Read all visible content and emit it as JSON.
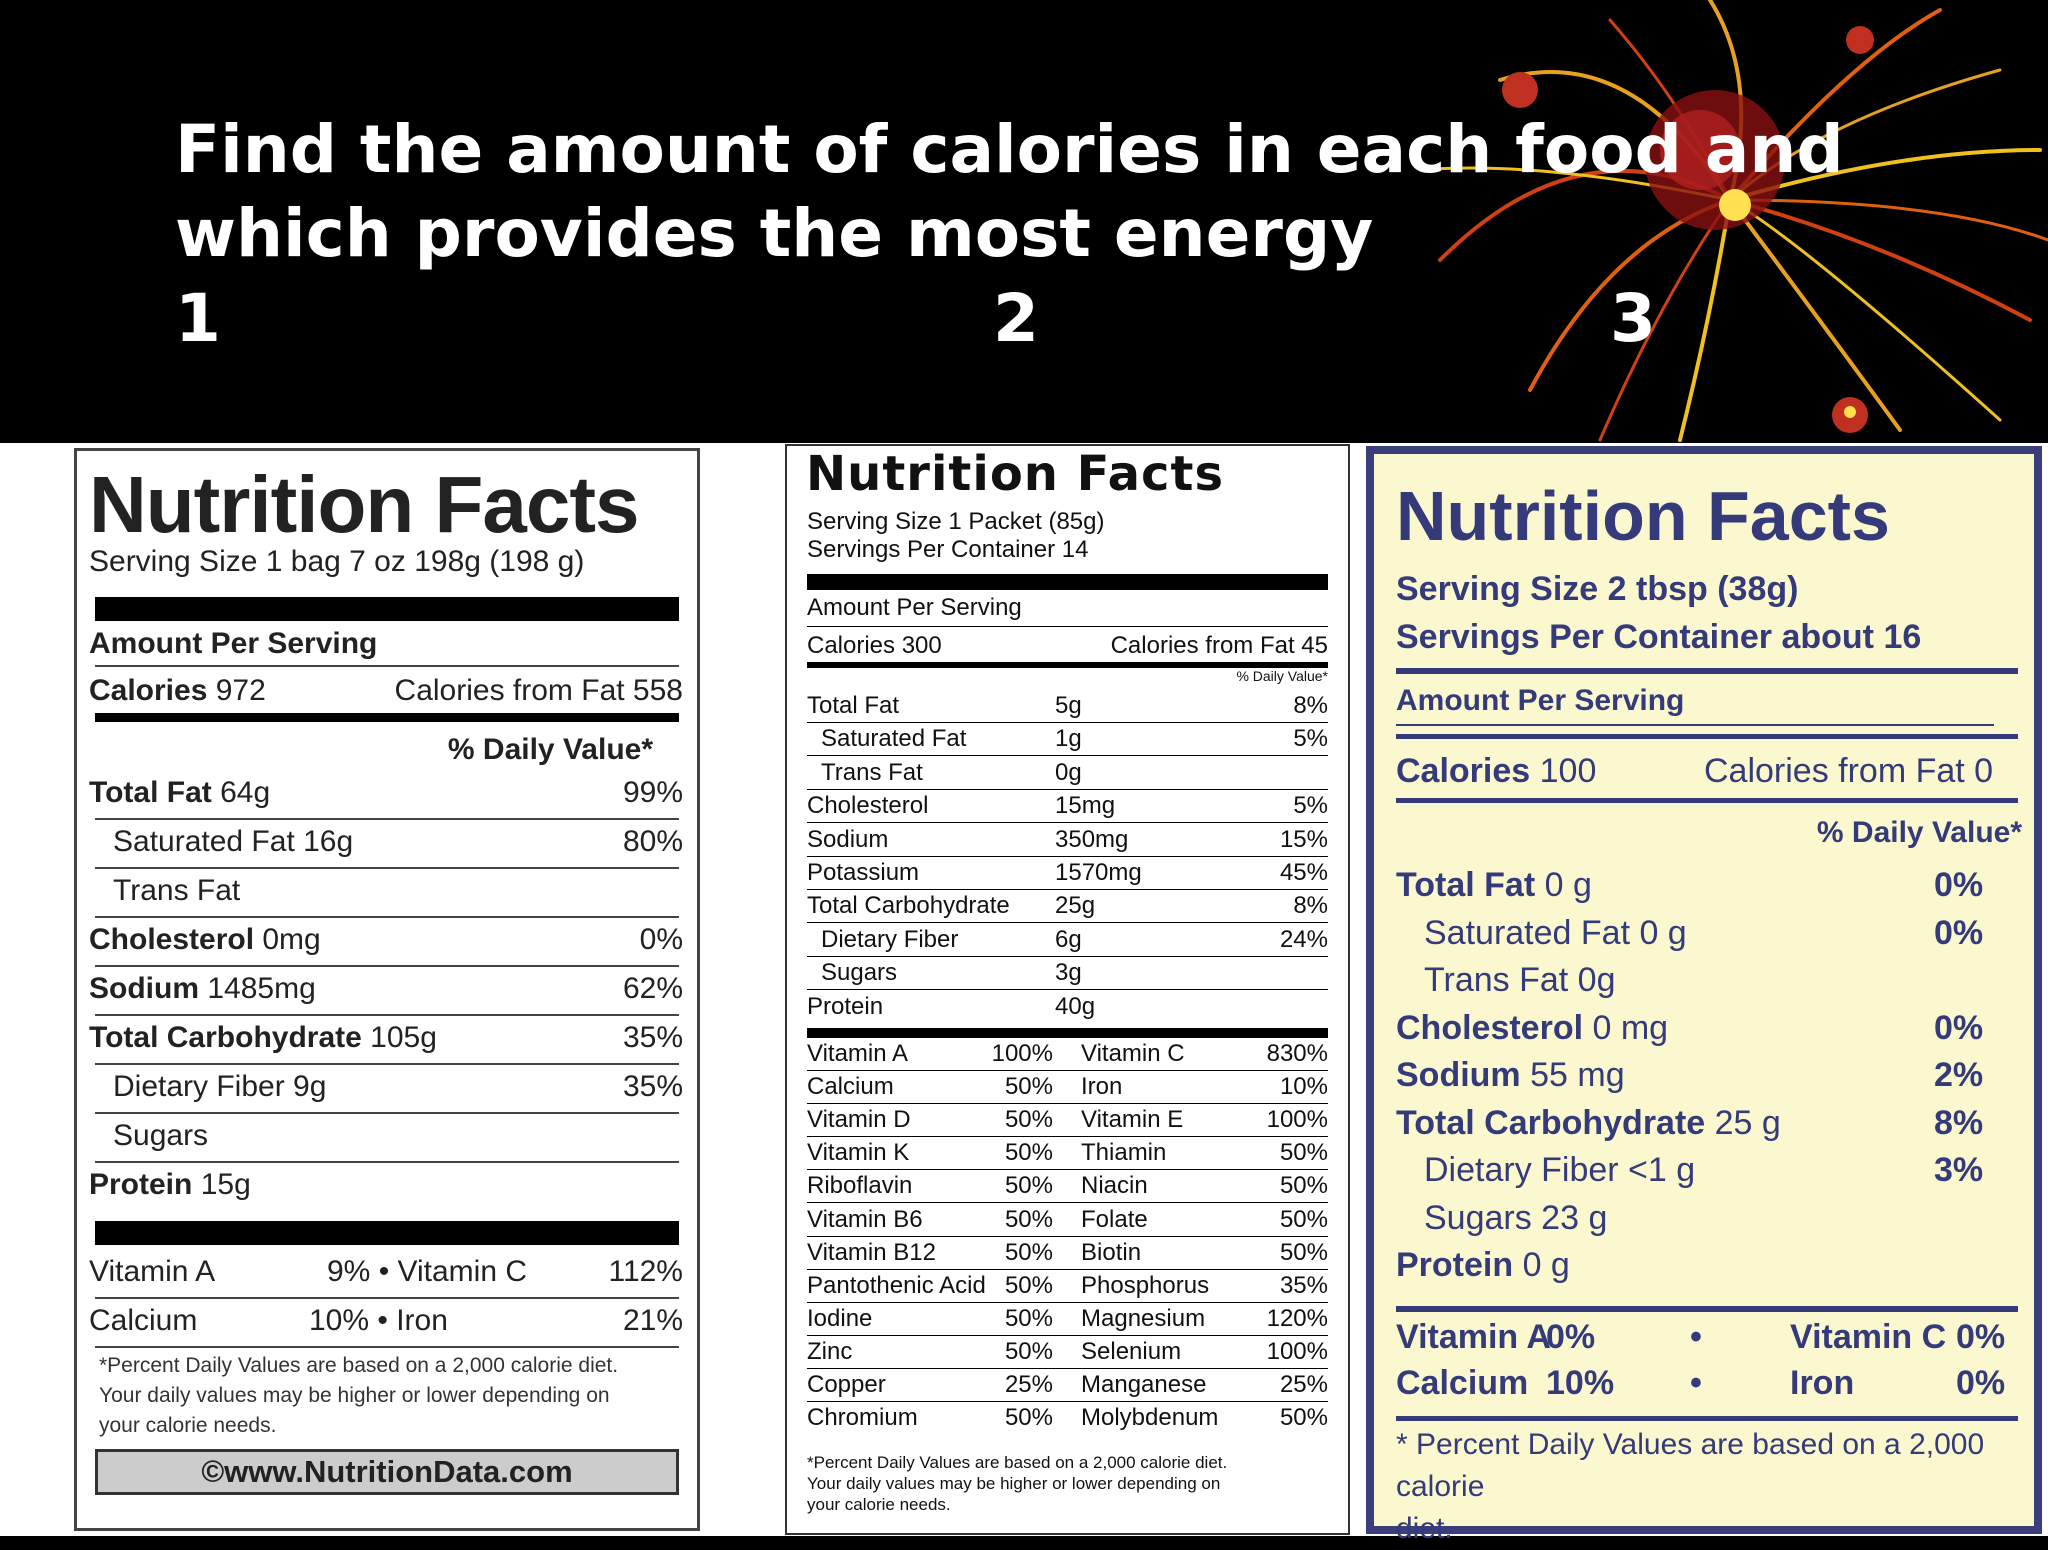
{
  "slide": {
    "title_line1": "Find the amount of calories in each food and",
    "title_line2": "which provides the most energy",
    "numbers": [
      "1",
      "2",
      "3"
    ]
  },
  "label1": {
    "heading": "Nutrition Facts",
    "serving": "Serving Size 1 bag 7 oz 198g (198 g)",
    "amount_per_serving": "Amount Per Serving",
    "calories_label": "Calories",
    "calories_value": "972",
    "calories_from_fat": "Calories from Fat 558",
    "dv_header": "% Daily Value*",
    "nutrients": [
      {
        "name": "Total Fat",
        "amount": "64g",
        "dv": "99%",
        "bold": true
      },
      {
        "name": "Saturated Fat 16g",
        "amount": "",
        "dv": "80%",
        "bold": false
      },
      {
        "name": "Trans Fat",
        "amount": "",
        "dv": "",
        "bold": false
      },
      {
        "name": "Cholesterol",
        "amount": "0mg",
        "dv": "0%",
        "bold": true
      },
      {
        "name": "Sodium",
        "amount": "1485mg",
        "dv": "62%",
        "bold": true
      },
      {
        "name": "Total Carbohydrate",
        "amount": "105g",
        "dv": "35%",
        "bold": true
      },
      {
        "name": "Dietary Fiber 9g",
        "amount": "",
        "dv": "35%",
        "bold": false
      },
      {
        "name": "Sugars",
        "amount": "",
        "dv": "",
        "bold": false
      },
      {
        "name": "Protein",
        "amount": "15g",
        "dv": "",
        "bold": true
      }
    ],
    "vitamins": [
      {
        "left": "Vitamin A",
        "mid": "9% • Vitamin C",
        "right": "112%"
      },
      {
        "left": "Calcium",
        "mid": "10% • Iron",
        "right": "21%"
      }
    ],
    "footnote": [
      "*Percent Daily Values are based on a 2,000 calorie diet.",
      "Your daily values may be higher or lower depending on",
      "your calorie needs."
    ],
    "copyright": "©www.NutritionData.com"
  },
  "label2": {
    "heading": "Nutrition Facts",
    "serving_size": "Serving Size 1 Packet (85g)",
    "servings_per": "Servings Per Container 14",
    "amount_per_serving": "Amount Per Serving",
    "calories": "Calories 300",
    "calories_from_fat": "Calories from Fat 45",
    "dv_header": "% Daily Value*",
    "nutrients": [
      {
        "name": "Total Fat",
        "amount": "5g",
        "dv": "8%"
      },
      {
        "name": "Saturated Fat",
        "amount": "1g",
        "dv": "5%"
      },
      {
        "name": "Trans Fat",
        "amount": "0g",
        "dv": ""
      },
      {
        "name": "Cholesterol",
        "amount": "15mg",
        "dv": "5%"
      },
      {
        "name": "Sodium",
        "amount": "350mg",
        "dv": "15%"
      },
      {
        "name": "Potassium",
        "amount": "1570mg",
        "dv": "45%"
      },
      {
        "name": "Total Carbohydrate",
        "amount": "25g",
        "dv": "8%"
      },
      {
        "name": "Dietary Fiber",
        "amount": "6g",
        "dv": "24%"
      },
      {
        "name": "Sugars",
        "amount": "3g",
        "dv": ""
      },
      {
        "name": "Protein",
        "amount": "40g",
        "dv": ""
      }
    ],
    "vitamins": [
      [
        "Vitamin A",
        "100%",
        "Vitamin C",
        "830%"
      ],
      [
        "Calcium",
        "50%",
        "Iron",
        "10%"
      ],
      [
        "Vitamin D",
        "50%",
        "Vitamin E",
        "100%"
      ],
      [
        "Vitamin K",
        "50%",
        "Thiamin",
        "50%"
      ],
      [
        "Riboflavin",
        "50%",
        "Niacin",
        "50%"
      ],
      [
        "Vitamin B6",
        "50%",
        "Folate",
        "50%"
      ],
      [
        "Vitamin B12",
        "50%",
        "Biotin",
        "50%"
      ],
      [
        "Pantothenic Acid",
        "50%",
        "Phosphorus",
        "35%"
      ],
      [
        "Iodine",
        "50%",
        "Magnesium",
        "120%"
      ],
      [
        "Zinc",
        "50%",
        "Selenium",
        "100%"
      ],
      [
        "Copper",
        "25%",
        "Manganese",
        "25%"
      ],
      [
        "Chromium",
        "50%",
        "Molybdenum",
        "50%"
      ]
    ],
    "footnote": [
      "*Percent Daily Values are based on a 2,000 calorie diet.",
      "Your daily values may be higher or lower depending on",
      "your calorie needs."
    ]
  },
  "label3": {
    "heading": "Nutrition Facts",
    "serving_size": "Serving Size 2 tbsp (38g)",
    "servings_per": "Servings Per Container about 16",
    "amount_per_serving": "Amount Per Serving",
    "calories_label": "Calories",
    "calories_value": "100",
    "calories_from_fat": "Calories from Fat 0",
    "dv_header": "% Daily Value*",
    "nutrients": [
      {
        "name": "Total Fat",
        "amount": "0 g",
        "dv": "0%",
        "bold": true
      },
      {
        "name": "Saturated Fat 0 g",
        "amount": "",
        "dv": "0%",
        "bold": false
      },
      {
        "name": "Trans Fat 0g",
        "amount": "",
        "dv": "",
        "bold": false
      },
      {
        "name": "Cholesterol",
        "amount": "0 mg",
        "dv": "0%",
        "bold": true
      },
      {
        "name": "Sodium",
        "amount": "55 mg",
        "dv": "2%",
        "bold": true
      },
      {
        "name": "Total Carbohydrate",
        "amount": "25 g",
        "dv": "8%",
        "bold": true
      },
      {
        "name": "Dietary Fiber <1 g",
        "amount": "",
        "dv": "3%",
        "bold": false
      },
      {
        "name": "Sugars 23 g",
        "amount": "",
        "dv": "",
        "bold": false
      },
      {
        "name": "Protein",
        "amount": "0 g",
        "dv": "",
        "bold": true
      }
    ],
    "vitamins": [
      {
        "a": "Vitamin A",
        "av": "0%",
        "dot": "•",
        "b": "Vitamin C",
        "bv": "0%"
      },
      {
        "a": "Calcium",
        "av": "10%",
        "dot": "•",
        "b": "Iron",
        "bv": "0%"
      }
    ],
    "footnote": [
      "* Percent Daily Values are based on a 2,000 calorie",
      "diet."
    ]
  }
}
